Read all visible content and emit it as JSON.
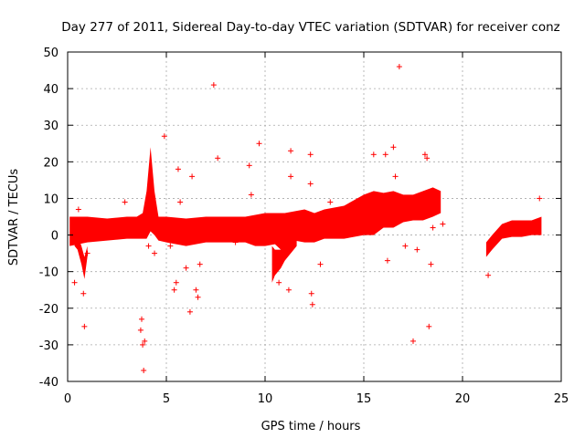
{
  "chart_data": {
    "type": "scatter",
    "title": "Day 277 of 2011, Sidereal Day-to-day VTEC variation (SDTVAR) for receiver conz",
    "xlabel": "GPS time / hours",
    "ylabel": "SDTVAR / TECUs",
    "xlim": [
      0,
      25
    ],
    "ylim": [
      -40,
      50
    ],
    "xticks": [
      0,
      5,
      10,
      15,
      20,
      25
    ],
    "yticks": [
      -40,
      -30,
      -20,
      -10,
      0,
      10,
      20,
      30,
      40,
      50
    ],
    "xtick_labels": [
      "0",
      "5",
      "10",
      "15",
      "20",
      "25"
    ],
    "ytick_labels": [
      "-40",
      "-30",
      "-20",
      "-10",
      "0",
      "10",
      "20",
      "30",
      "40",
      "50"
    ],
    "grid": true,
    "marker": "+",
    "color": "#ff0000",
    "series": [
      {
        "name": "SDTVAR",
        "bands": [
          {
            "x": [
              0.1,
              1.0,
              2.0,
              3.0,
              3.5,
              3.8,
              4.0,
              4.2,
              4.4,
              4.6,
              5.0,
              6.0,
              7.0,
              8.0,
              9.0,
              9.5,
              10.0,
              10.5,
              11.0,
              11.5,
              12.0,
              12.5,
              13.0,
              14.0,
              15.0,
              15.5,
              16.0,
              16.5,
              17.0,
              17.5,
              18.0,
              18.5,
              18.9
            ],
            "upper": [
              5,
              5,
              4.5,
              5,
              5,
              6,
              12,
              24,
              12,
              5,
              5,
              4.5,
              5,
              5,
              5,
              5.5,
              6,
              6,
              6,
              6.5,
              7,
              6,
              7,
              8,
              11,
              12,
              11.5,
              12,
              11,
              11,
              12,
              13,
              12
            ],
            "lower": [
              -3,
              -2,
              -1.5,
              -1,
              -1,
              -1,
              -1,
              1,
              0,
              -1.5,
              -2,
              -3,
              -2,
              -2,
              -2,
              -3,
              -3,
              -2.5,
              -5,
              -1.5,
              -2,
              -2,
              -1,
              -1,
              0,
              0,
              2,
              2,
              3.5,
              4,
              4,
              5,
              6
            ]
          },
          {
            "x": [
              21.2,
              21.5,
              22.0,
              22.5,
              23.0,
              23.5,
              24.0
            ],
            "upper": [
              -2,
              0,
              3,
              4,
              4,
              4,
              5
            ],
            "lower": [
              -6,
              -4,
              -1,
              -0.5,
              -0.5,
              0,
              0
            ]
          },
          {
            "x": [
              10.35,
              10.5,
              10.8,
              11.0,
              11.3,
              11.6
            ],
            "upper": [
              -3,
              -4,
              -4,
              -3,
              -2,
              -1
            ],
            "lower": [
              -13,
              -11,
              -9,
              -7,
              -5,
              -3
            ]
          },
          {
            "x": [
              0.35,
              0.5,
              0.7,
              0.85,
              1.0
            ],
            "upper": [
              0,
              0,
              -3,
              -6,
              -3
            ],
            "lower": [
              -3,
              -4,
              -8,
              -12,
              -6
            ]
          }
        ],
        "points": [
          [
            0.35,
            -13
          ],
          [
            0.55,
            7
          ],
          [
            0.8,
            -16
          ],
          [
            0.85,
            -25
          ],
          [
            1.0,
            -5
          ],
          [
            2.9,
            9
          ],
          [
            3.7,
            -26
          ],
          [
            3.75,
            -23
          ],
          [
            3.8,
            -30
          ],
          [
            3.85,
            -37
          ],
          [
            3.9,
            -29
          ],
          [
            4.1,
            -3
          ],
          [
            4.4,
            -5
          ],
          [
            4.9,
            27
          ],
          [
            5.2,
            -3
          ],
          [
            5.4,
            -15
          ],
          [
            5.5,
            -13
          ],
          [
            5.6,
            18
          ],
          [
            5.7,
            9
          ],
          [
            6.0,
            -9
          ],
          [
            6.2,
            -21
          ],
          [
            6.3,
            16
          ],
          [
            6.5,
            -15
          ],
          [
            6.6,
            -17
          ],
          [
            6.7,
            -8
          ],
          [
            7.0,
            0
          ],
          [
            7.4,
            41
          ],
          [
            7.6,
            21
          ],
          [
            8.5,
            -2
          ],
          [
            9.2,
            19
          ],
          [
            9.3,
            11
          ],
          [
            9.7,
            25
          ],
          [
            9.9,
            2
          ],
          [
            10.5,
            -8
          ],
          [
            10.7,
            -13
          ],
          [
            11.2,
            -15
          ],
          [
            11.3,
            23
          ],
          [
            11.3,
            16
          ],
          [
            12.3,
            22
          ],
          [
            12.3,
            14
          ],
          [
            12.35,
            -16
          ],
          [
            12.4,
            -19
          ],
          [
            12.8,
            -8
          ],
          [
            13.3,
            9
          ],
          [
            15.5,
            22
          ],
          [
            16.1,
            22
          ],
          [
            16.2,
            -7
          ],
          [
            16.5,
            24
          ],
          [
            16.6,
            16
          ],
          [
            16.8,
            46
          ],
          [
            16.8,
            10
          ],
          [
            17.1,
            -3
          ],
          [
            17.5,
            -29
          ],
          [
            17.7,
            -4
          ],
          [
            18.1,
            22
          ],
          [
            18.2,
            21
          ],
          [
            18.3,
            -25
          ],
          [
            18.4,
            -8
          ],
          [
            18.5,
            2
          ],
          [
            19.0,
            3
          ],
          [
            21.3,
            -11
          ],
          [
            23.9,
            10
          ]
        ]
      }
    ]
  }
}
